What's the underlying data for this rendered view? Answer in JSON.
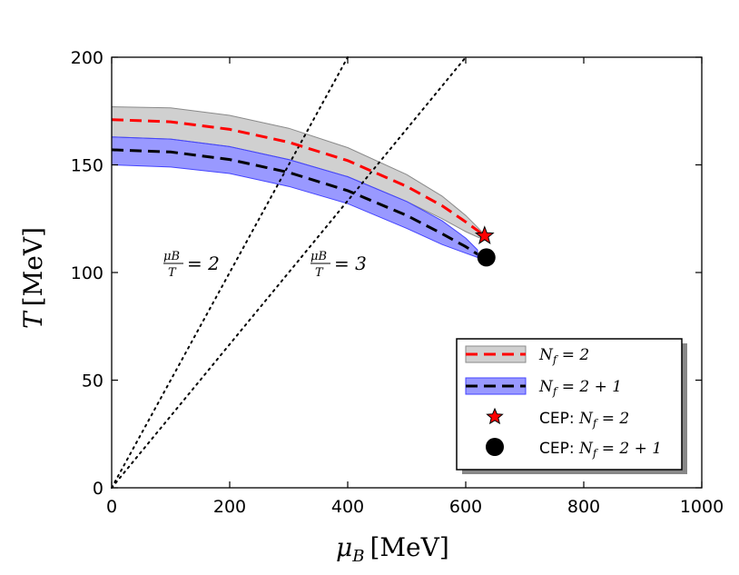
{
  "chart_data": {
    "type": "line",
    "title": "",
    "xlabel": "μB [MeV]",
    "xlabel_symbol": "μ",
    "xlabel_sub": "B",
    "xlabel_unit": "[MeV]",
    "ylabel": "T [MeV]",
    "ylabel_symbol": "T",
    "ylabel_unit": "[MeV]",
    "xlim": [
      0,
      1000
    ],
    "ylim": [
      0,
      200
    ],
    "xticks": [
      0,
      200,
      400,
      600,
      800,
      1000
    ],
    "yticks": [
      0,
      50,
      100,
      150,
      200
    ],
    "xtick_labels": [
      "0",
      "200",
      "400",
      "600",
      "800",
      "1000"
    ],
    "ytick_labels": [
      "0",
      "50",
      "100",
      "150",
      "200"
    ],
    "grid": false,
    "legend_position": "lower-right",
    "series": [
      {
        "name": "Nf = 2",
        "color": "#ff0000",
        "band_color": "#b0b0b0",
        "x": [
          0,
          100,
          200,
          300,
          400,
          500,
          560,
          600,
          620,
          630
        ],
        "y": [
          171,
          170,
          166.5,
          160.5,
          152,
          140,
          131,
          123.5,
          119.5,
          117
        ],
        "band_upper": [
          177,
          176.5,
          173,
          167,
          158,
          145.5,
          135.5,
          126.5,
          121,
          118
        ],
        "band_lower": [
          163,
          162,
          158.5,
          152.5,
          144.5,
          133,
          125,
          119,
          116.5,
          115.5
        ]
      },
      {
        "name": "Nf = 2+1",
        "color": "#000000",
        "band_color": "#0000ff",
        "x": [
          0,
          100,
          200,
          300,
          400,
          500,
          560,
          600,
          620
        ],
        "y": [
          157,
          156,
          152.5,
          146.5,
          138,
          126.5,
          118,
          112,
          108.5
        ],
        "band_upper": [
          163,
          162,
          158.5,
          152.5,
          144.5,
          133,
          124,
          116,
          110.5
        ],
        "band_lower": [
          150,
          149,
          146,
          140,
          132,
          120.5,
          113,
          109,
          107
        ]
      }
    ],
    "cep_points": [
      {
        "name": "CEP: Nf = 2",
        "x": 632,
        "y": 117,
        "marker": "star",
        "color": "#ff0000"
      },
      {
        "name": "CEP: Nf = 2+1",
        "x": 635,
        "y": 107,
        "marker": "circle",
        "color": "#000000"
      }
    ],
    "reference_lines": [
      {
        "label_num": "μB",
        "label_den": "T",
        "label_value": "= 2",
        "ratio": 2
      },
      {
        "label_num": "μB",
        "label_den": "T",
        "label_value": "= 3",
        "ratio": 3
      }
    ],
    "legend_entries": [
      {
        "prefix": "",
        "symbol": "N",
        "sub": "f",
        "rest": " = 2"
      },
      {
        "prefix": "",
        "symbol": "N",
        "sub": "f",
        "rest": " = 2 + 1"
      },
      {
        "prefix": "CEP: ",
        "symbol": "N",
        "sub": "f",
        "rest": " = 2"
      },
      {
        "prefix": "CEP: ",
        "symbol": "N",
        "sub": "f",
        "rest": " = 2 + 1"
      }
    ]
  }
}
